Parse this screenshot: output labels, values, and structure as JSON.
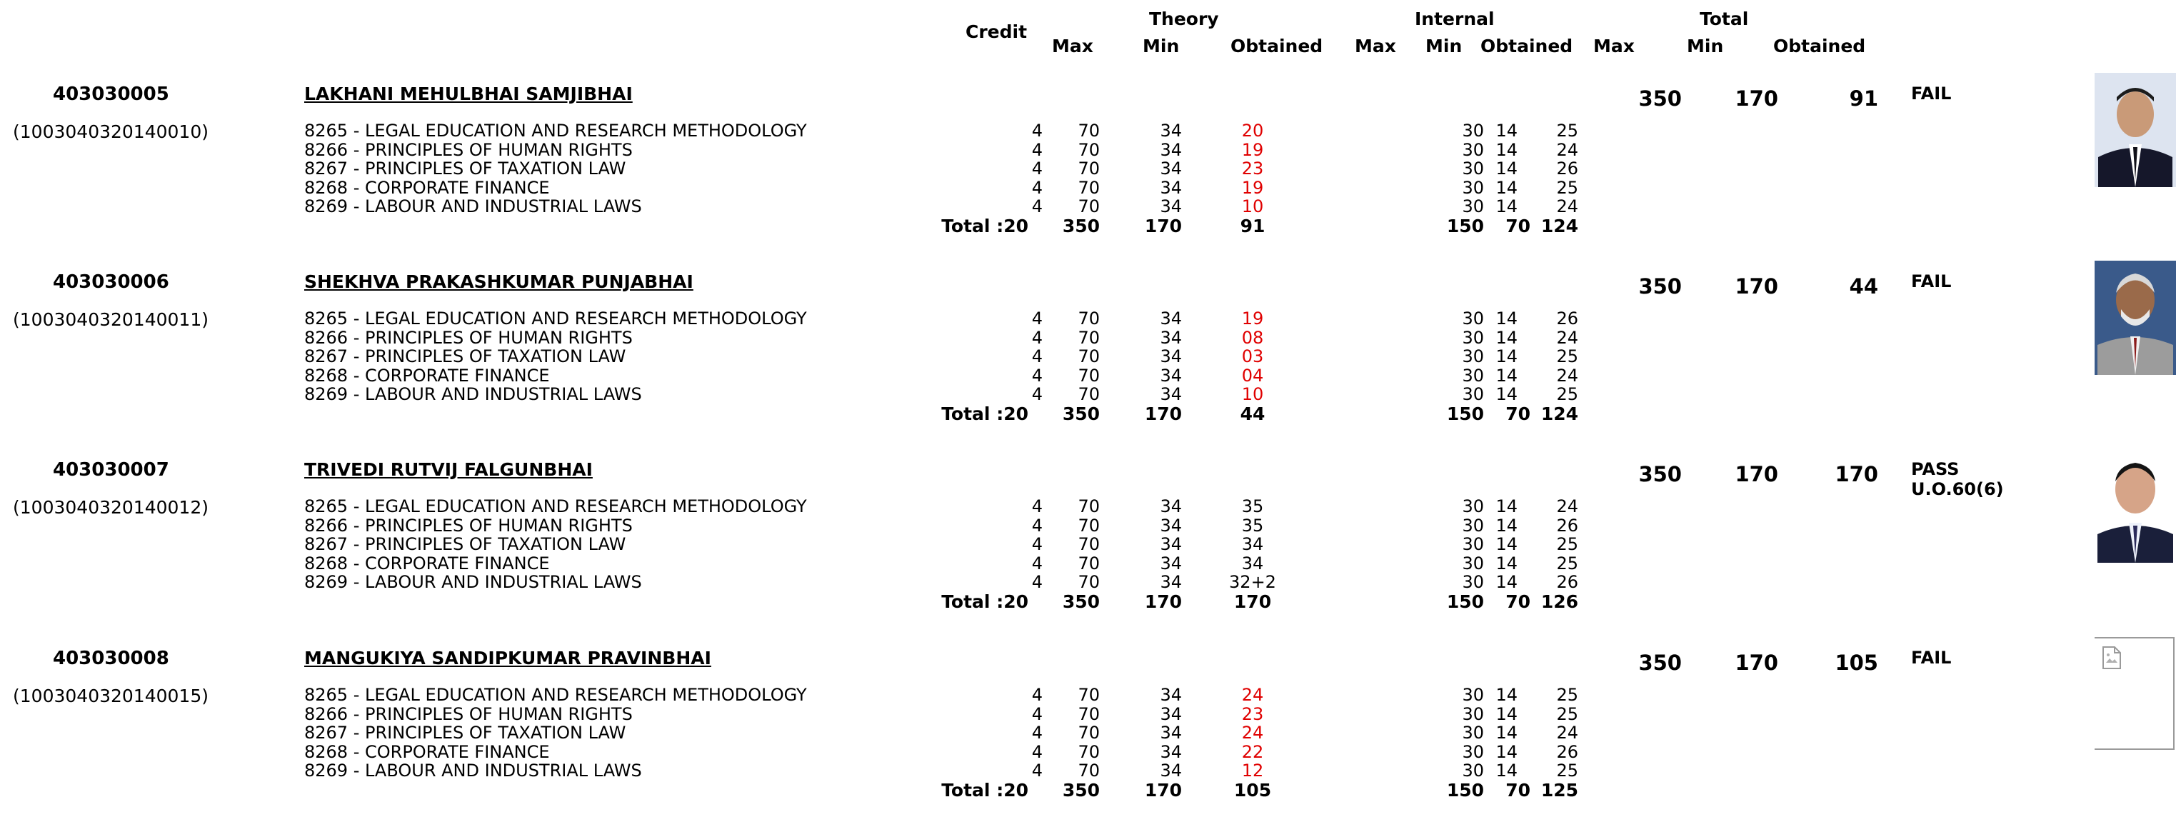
{
  "header": {
    "credit": "Credit",
    "theory": "Theory",
    "internal": "Internal",
    "total": "Total",
    "max1": "Max",
    "min1": "Min",
    "obt1": "Obtained",
    "max2": "Max",
    "min2": "Min",
    "obt2": "Obtained",
    "max3": "Max",
    "min3": "Min",
    "obt3": "Obtained"
  },
  "students": [
    {
      "seat": "403030005",
      "enrollment": "(1003040320140010)",
      "name": "LAKHANI MEHULBHAI SAMJIBHAI",
      "total_max": "350",
      "total_min": "170",
      "total_obtained": "91",
      "result": "FAIL",
      "result_note": "",
      "photo": "photo-formal-suit",
      "subjects": [
        {
          "name": "8265 - LEGAL EDUCATION AND RESEARCH METHODOLOGY",
          "credit": "4",
          "tmax": "70",
          "tmin": "34",
          "tobt": "20",
          "tfail": true,
          "imax": "30",
          "imin": "14",
          "iobt": "25"
        },
        {
          "name": "8266 - PRINCIPLES OF HUMAN RIGHTS",
          "credit": "4",
          "tmax": "70",
          "tmin": "34",
          "tobt": "19",
          "tfail": true,
          "imax": "30",
          "imin": "14",
          "iobt": "24"
        },
        {
          "name": "8267 - PRINCIPLES OF TAXATION LAW",
          "credit": "4",
          "tmax": "70",
          "tmin": "34",
          "tobt": "23",
          "tfail": true,
          "imax": "30",
          "imin": "14",
          "iobt": "26"
        },
        {
          "name": "8268 - CORPORATE FINANCE",
          "credit": "4",
          "tmax": "70",
          "tmin": "34",
          "tobt": "19",
          "tfail": true,
          "imax": "30",
          "imin": "14",
          "iobt": "25"
        },
        {
          "name": "8269 - LABOUR AND INDUSTRIAL LAWS",
          "credit": "4",
          "tmax": "70",
          "tmin": "34",
          "tobt": "10",
          "tfail": true,
          "imax": "30",
          "imin": "14",
          "iobt": "24"
        }
      ],
      "totals": {
        "label": "Total :20",
        "tmax": "350",
        "tmin": "170",
        "tobt": "91",
        "imax": "150",
        "imin": "70",
        "iobt": "124"
      }
    },
    {
      "seat": "403030006",
      "enrollment": "(1003040320140011)",
      "name": "SHEKHVA PRAKASHKUMAR PUNJABHAI",
      "total_max": "350",
      "total_min": "170",
      "total_obtained": "44",
      "result": "FAIL",
      "result_note": "",
      "photo": "photo-elderly-man",
      "subjects": [
        {
          "name": "8265 - LEGAL EDUCATION AND RESEARCH METHODOLOGY",
          "credit": "4",
          "tmax": "70",
          "tmin": "34",
          "tobt": "19",
          "tfail": true,
          "imax": "30",
          "imin": "14",
          "iobt": "26"
        },
        {
          "name": "8266 - PRINCIPLES OF HUMAN RIGHTS",
          "credit": "4",
          "tmax": "70",
          "tmin": "34",
          "tobt": "08",
          "tfail": true,
          "imax": "30",
          "imin": "14",
          "iobt": "24"
        },
        {
          "name": "8267 - PRINCIPLES OF TAXATION LAW",
          "credit": "4",
          "tmax": "70",
          "tmin": "34",
          "tobt": "03",
          "tfail": true,
          "imax": "30",
          "imin": "14",
          "iobt": "25"
        },
        {
          "name": "8268 - CORPORATE FINANCE",
          "credit": "4",
          "tmax": "70",
          "tmin": "34",
          "tobt": "04",
          "tfail": true,
          "imax": "30",
          "imin": "14",
          "iobt": "24"
        },
        {
          "name": "8269 - LABOUR AND INDUSTRIAL LAWS",
          "credit": "4",
          "tmax": "70",
          "tmin": "34",
          "tobt": "10",
          "tfail": true,
          "imax": "30",
          "imin": "14",
          "iobt": "25"
        }
      ],
      "totals": {
        "label": "Total :20",
        "tmax": "350",
        "tmin": "170",
        "tobt": "44",
        "imax": "150",
        "imin": "70",
        "iobt": "124"
      }
    },
    {
      "seat": "403030007",
      "enrollment": "(1003040320140012)",
      "name": "TRIVEDI RUTVIJ FALGUNBHAI",
      "total_max": "350",
      "total_min": "170",
      "total_obtained": "170",
      "result": "PASS",
      "result_note": "U.O.60(6)",
      "photo": "photo-young-man",
      "subjects": [
        {
          "name": "8265 - LEGAL EDUCATION AND RESEARCH METHODOLOGY",
          "credit": "4",
          "tmax": "70",
          "tmin": "34",
          "tobt": "35",
          "tfail": false,
          "imax": "30",
          "imin": "14",
          "iobt": "24"
        },
        {
          "name": "8266 - PRINCIPLES OF HUMAN RIGHTS",
          "credit": "4",
          "tmax": "70",
          "tmin": "34",
          "tobt": "35",
          "tfail": false,
          "imax": "30",
          "imin": "14",
          "iobt": "26"
        },
        {
          "name": "8267 - PRINCIPLES OF TAXATION LAW",
          "credit": "4",
          "tmax": "70",
          "tmin": "34",
          "tobt": "34",
          "tfail": false,
          "imax": "30",
          "imin": "14",
          "iobt": "25"
        },
        {
          "name": "8268 - CORPORATE FINANCE",
          "credit": "4",
          "tmax": "70",
          "tmin": "34",
          "tobt": "34",
          "tfail": false,
          "imax": "30",
          "imin": "14",
          "iobt": "25"
        },
        {
          "name": "8269 - LABOUR AND INDUSTRIAL LAWS",
          "credit": "4",
          "tmax": "70",
          "tmin": "34",
          "tobt": "32+2",
          "tfail": false,
          "imax": "30",
          "imin": "14",
          "iobt": "26"
        }
      ],
      "totals": {
        "label": "Total :20",
        "tmax": "350",
        "tmin": "170",
        "tobt": "170",
        "imax": "150",
        "imin": "70",
        "iobt": "126"
      }
    },
    {
      "seat": "403030008",
      "enrollment": "(1003040320140015)",
      "name": "MANGUKIYA SANDIPKUMAR PRAVINBHAI",
      "total_max": "350",
      "total_min": "170",
      "total_obtained": "105",
      "result": "FAIL",
      "result_note": "",
      "photo": "broken-image-icon",
      "subjects": [
        {
          "name": "8265 - LEGAL EDUCATION AND RESEARCH METHODOLOGY",
          "credit": "4",
          "tmax": "70",
          "tmin": "34",
          "tobt": "24",
          "tfail": true,
          "imax": "30",
          "imin": "14",
          "iobt": "25"
        },
        {
          "name": "8266 - PRINCIPLES OF HUMAN RIGHTS",
          "credit": "4",
          "tmax": "70",
          "tmin": "34",
          "tobt": "23",
          "tfail": true,
          "imax": "30",
          "imin": "14",
          "iobt": "25"
        },
        {
          "name": "8267 - PRINCIPLES OF TAXATION LAW",
          "credit": "4",
          "tmax": "70",
          "tmin": "34",
          "tobt": "24",
          "tfail": true,
          "imax": "30",
          "imin": "14",
          "iobt": "24"
        },
        {
          "name": "8268 - CORPORATE FINANCE",
          "credit": "4",
          "tmax": "70",
          "tmin": "34",
          "tobt": "22",
          "tfail": true,
          "imax": "30",
          "imin": "14",
          "iobt": "26"
        },
        {
          "name": "8269 - LABOUR AND INDUSTRIAL LAWS",
          "credit": "4",
          "tmax": "70",
          "tmin": "34",
          "tobt": "12",
          "tfail": true,
          "imax": "30",
          "imin": "14",
          "iobt": "25"
        }
      ],
      "totals": {
        "label": "Total :20",
        "tmax": "350",
        "tmin": "170",
        "tobt": "105",
        "imax": "150",
        "imin": "70",
        "iobt": "125"
      }
    }
  ],
  "colors": {
    "fail_mark": "#e00000",
    "text": "#000000"
  }
}
